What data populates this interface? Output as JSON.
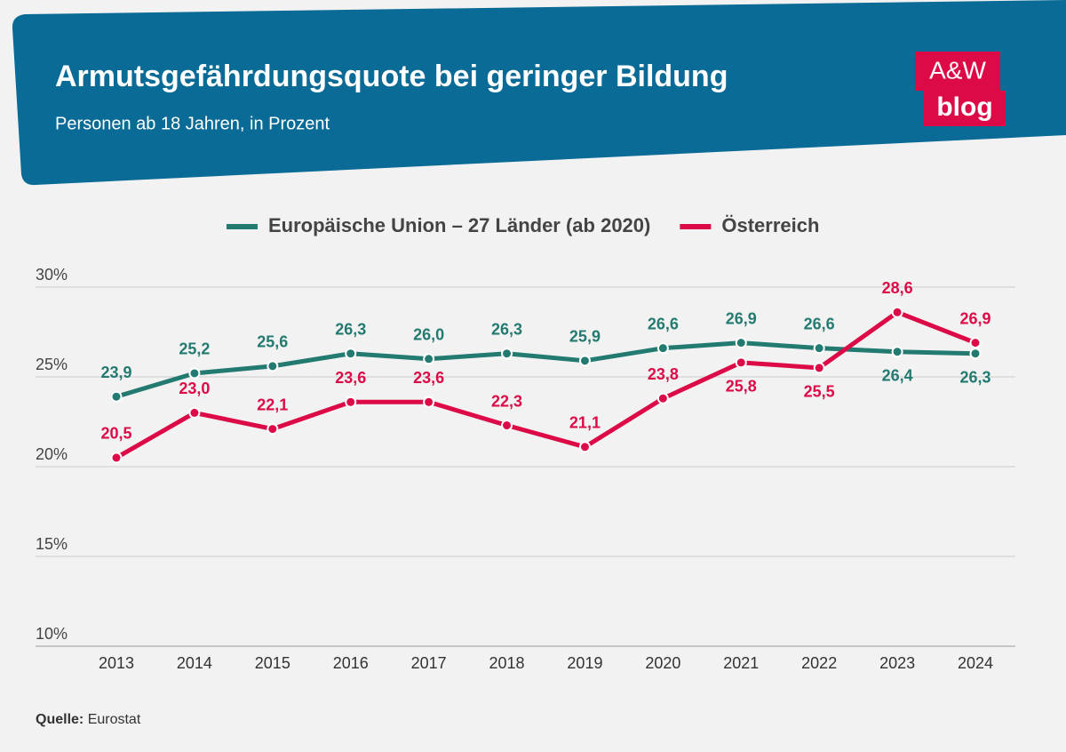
{
  "chart_data": {
    "type": "line",
    "title": "Armutsgefährdungsquote bei geringer Bildung",
    "subtitle": "Personen ab 18 Jahren, in Prozent",
    "categories": [
      "2013",
      "2014",
      "2015",
      "2016",
      "2017",
      "2018",
      "2019",
      "2020",
      "2021",
      "2022",
      "2023",
      "2024"
    ],
    "series": [
      {
        "name": "Europäische Union – 27 Länder (ab 2020)",
        "color": "#237a70",
        "values": [
          23.9,
          25.2,
          25.6,
          26.3,
          26.0,
          26.3,
          25.9,
          26.6,
          26.9,
          26.6,
          26.4,
          26.3
        ],
        "value_labels": [
          "23,9",
          "25,2",
          "25,6",
          "26,3",
          "26,0",
          "26,3",
          "25,9",
          "26,6",
          "26,9",
          "26,6",
          "26,4",
          "26,3"
        ]
      },
      {
        "name": "Österreich",
        "color": "#dc0a46",
        "values": [
          20.5,
          23.0,
          22.1,
          23.6,
          23.6,
          22.3,
          21.1,
          23.8,
          25.8,
          25.5,
          28.6,
          26.9
        ],
        "value_labels": [
          "20,5",
          "23,0",
          "22,1",
          "23,6",
          "23,6",
          "22,3",
          "21,1",
          "23,8",
          "25,8",
          "25,5",
          "28,6",
          "26,9"
        ]
      }
    ],
    "ylim": [
      10,
      30
    ],
    "yticks": [
      {
        "value": 10,
        "label": "10%"
      },
      {
        "value": 15,
        "label": "15%"
      },
      {
        "value": 20,
        "label": "20%"
      },
      {
        "value": 25,
        "label": "25%"
      },
      {
        "value": 30,
        "label": "30%"
      }
    ],
    "grid": true
  },
  "logo": {
    "line1": "A&W",
    "line2": "blog"
  },
  "source": {
    "label": "Quelle:",
    "text": "Eurostat"
  }
}
